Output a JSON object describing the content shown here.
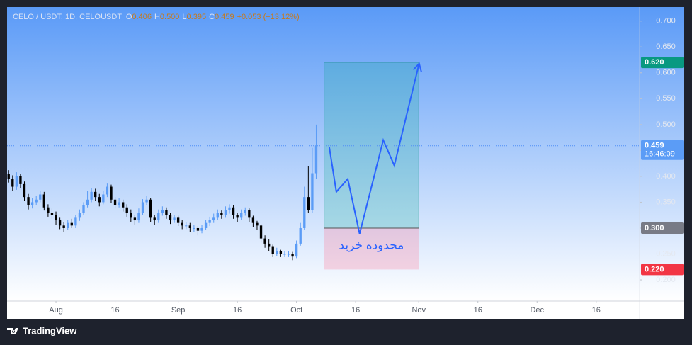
{
  "chart_data": {
    "type": "candlestick",
    "legend_symbol": "CELO / USDT, 1D, CELOUSDT",
    "ohlc_labels": [
      {
        "key": "O",
        "text": "0.406"
      },
      {
        "key": "H",
        "text": "0.500"
      },
      {
        "key": "L",
        "text": "0.395"
      },
      {
        "key": "C",
        "text": "0.459"
      }
    ],
    "change": "+0.053 (+13.12%)",
    "up_color": "#5b9cf6",
    "down_color": "#000000",
    "candles": [
      [
        0.405,
        0.412,
        0.388,
        0.395
      ],
      [
        0.395,
        0.402,
        0.372,
        0.38
      ],
      [
        0.38,
        0.408,
        0.374,
        0.4
      ],
      [
        0.4,
        0.405,
        0.378,
        0.385
      ],
      [
        0.385,
        0.39,
        0.352,
        0.36
      ],
      [
        0.36,
        0.366,
        0.336,
        0.345
      ],
      [
        0.345,
        0.358,
        0.338,
        0.35
      ],
      [
        0.35,
        0.362,
        0.344,
        0.355
      ],
      [
        0.355,
        0.372,
        0.35,
        0.365
      ],
      [
        0.365,
        0.37,
        0.334,
        0.34
      ],
      [
        0.34,
        0.346,
        0.322,
        0.33
      ],
      [
        0.33,
        0.338,
        0.318,
        0.325
      ],
      [
        0.325,
        0.332,
        0.306,
        0.315
      ],
      [
        0.315,
        0.32,
        0.298,
        0.305
      ],
      [
        0.305,
        0.312,
        0.292,
        0.3
      ],
      [
        0.3,
        0.316,
        0.296,
        0.31
      ],
      [
        0.31,
        0.318,
        0.3,
        0.305
      ],
      [
        0.305,
        0.326,
        0.3,
        0.32
      ],
      [
        0.32,
        0.336,
        0.314,
        0.33
      ],
      [
        0.33,
        0.35,
        0.325,
        0.345
      ],
      [
        0.345,
        0.372,
        0.34,
        0.355
      ],
      [
        0.355,
        0.378,
        0.35,
        0.37
      ],
      [
        0.37,
        0.376,
        0.352,
        0.36
      ],
      [
        0.36,
        0.366,
        0.342,
        0.35
      ],
      [
        0.35,
        0.372,
        0.346,
        0.365
      ],
      [
        0.365,
        0.386,
        0.36,
        0.38
      ],
      [
        0.38,
        0.384,
        0.348,
        0.355
      ],
      [
        0.355,
        0.36,
        0.338,
        0.345
      ],
      [
        0.345,
        0.358,
        0.34,
        0.35
      ],
      [
        0.35,
        0.355,
        0.332,
        0.34
      ],
      [
        0.34,
        0.346,
        0.322,
        0.33
      ],
      [
        0.33,
        0.336,
        0.312,
        0.32
      ],
      [
        0.32,
        0.326,
        0.306,
        0.315
      ],
      [
        0.315,
        0.338,
        0.31,
        0.33
      ],
      [
        0.33,
        0.356,
        0.326,
        0.35
      ],
      [
        0.35,
        0.362,
        0.344,
        0.355
      ],
      [
        0.355,
        0.358,
        0.312,
        0.32
      ],
      [
        0.32,
        0.326,
        0.306,
        0.315
      ],
      [
        0.315,
        0.336,
        0.31,
        0.33
      ],
      [
        0.33,
        0.342,
        0.324,
        0.335
      ],
      [
        0.335,
        0.34,
        0.318,
        0.325
      ],
      [
        0.325,
        0.33,
        0.308,
        0.315
      ],
      [
        0.315,
        0.326,
        0.31,
        0.32
      ],
      [
        0.32,
        0.324,
        0.304,
        0.31
      ],
      [
        0.31,
        0.316,
        0.298,
        0.305
      ],
      [
        0.305,
        0.312,
        0.298,
        0.305
      ],
      [
        0.305,
        0.31,
        0.292,
        0.3
      ],
      [
        0.3,
        0.306,
        0.292,
        0.3
      ],
      [
        0.3,
        0.304,
        0.286,
        0.295
      ],
      [
        0.295,
        0.306,
        0.29,
        0.3
      ],
      [
        0.3,
        0.316,
        0.296,
        0.31
      ],
      [
        0.31,
        0.322,
        0.304,
        0.315
      ],
      [
        0.315,
        0.328,
        0.31,
        0.32
      ],
      [
        0.32,
        0.336,
        0.316,
        0.33
      ],
      [
        0.33,
        0.334,
        0.318,
        0.325
      ],
      [
        0.325,
        0.342,
        0.32,
        0.335
      ],
      [
        0.335,
        0.346,
        0.328,
        0.34
      ],
      [
        0.34,
        0.344,
        0.318,
        0.325
      ],
      [
        0.325,
        0.33,
        0.312,
        0.32
      ],
      [
        0.32,
        0.336,
        0.316,
        0.33
      ],
      [
        0.33,
        0.34,
        0.324,
        0.335
      ],
      [
        0.335,
        0.338,
        0.312,
        0.32
      ],
      [
        0.32,
        0.324,
        0.302,
        0.31
      ],
      [
        0.31,
        0.314,
        0.296,
        0.305
      ],
      [
        0.305,
        0.308,
        0.272,
        0.28
      ],
      [
        0.28,
        0.286,
        0.262,
        0.27
      ],
      [
        0.27,
        0.278,
        0.256,
        0.265
      ],
      [
        0.265,
        0.268,
        0.244,
        0.25
      ],
      [
        0.25,
        0.262,
        0.246,
        0.255
      ],
      [
        0.255,
        0.258,
        0.244,
        0.25
      ],
      [
        0.25,
        0.256,
        0.244,
        0.25
      ],
      [
        0.25,
        0.256,
        0.244,
        0.25
      ],
      [
        0.25,
        0.254,
        0.238,
        0.245
      ],
      [
        0.245,
        0.276,
        0.242,
        0.27
      ],
      [
        0.27,
        0.31,
        0.266,
        0.3
      ],
      [
        0.3,
        0.38,
        0.296,
        0.36
      ],
      [
        0.36,
        0.42,
        0.33,
        0.335
      ],
      [
        0.335,
        0.455,
        0.33,
        0.406
      ],
      [
        0.406,
        0.5,
        0.395,
        0.459
      ]
    ],
    "xlim": [
      -0.4,
      160
    ],
    "xticks": [
      {
        "value": 12,
        "label": "Aug"
      },
      {
        "value": 27,
        "label": "16"
      },
      {
        "value": 43,
        "label": "Sep"
      },
      {
        "value": 58,
        "label": "16"
      },
      {
        "value": 73,
        "label": "Oct"
      },
      {
        "value": 88,
        "label": "16"
      },
      {
        "value": 104,
        "label": "Nov"
      },
      {
        "value": 119,
        "label": "16"
      },
      {
        "value": 134,
        "label": "Dec"
      },
      {
        "value": 149,
        "label": "16"
      }
    ],
    "ylim": [
      0.159,
      0.727
    ],
    "yticks": [
      {
        "value": 0.7,
        "label": "0.700"
      },
      {
        "value": 0.65,
        "label": "0.650"
      },
      {
        "value": 0.6,
        "label": "0.600"
      },
      {
        "value": 0.55,
        "label": "0.550"
      },
      {
        "value": 0.5,
        "label": "0.500"
      },
      {
        "value": 0.45,
        "label": "0.450"
      },
      {
        "value": 0.4,
        "label": "0.400"
      },
      {
        "value": 0.35,
        "label": "0.350"
      },
      {
        "value": 0.3,
        "label": "0.300"
      },
      {
        "value": 0.25,
        "label": "0.250"
      },
      {
        "value": 0.2,
        "label": "0.200"
      }
    ],
    "position": {
      "x0": 80,
      "x1": 104,
      "target": 0.62,
      "entry": 0.3,
      "stop": 0.22,
      "target_color": "rgba(0,170,140,0.22)",
      "stop_color": "rgba(255,120,150,0.28)"
    },
    "arrow": {
      "x": [
        81.3,
        83.1,
        86,
        89,
        95,
        97.8,
        104.1
      ],
      "y": [
        0.457,
        0.37,
        0.395,
        0.289,
        0.47,
        0.421,
        0.618
      ],
      "color": "#2962ff"
    },
    "note": "محدوده خرید",
    "price_tags": [
      {
        "value": 0.62,
        "label": "0.620",
        "color": "#089981"
      },
      {
        "value": 0.459,
        "label": "0.459",
        "time": "16:46:09",
        "color": "#5b9cf6"
      },
      {
        "value": 0.3,
        "label": "0.300",
        "color": "#787b86"
      },
      {
        "value": 0.22,
        "label": "0.220",
        "color": "#f23645"
      }
    ],
    "brand": "TradingView"
  }
}
